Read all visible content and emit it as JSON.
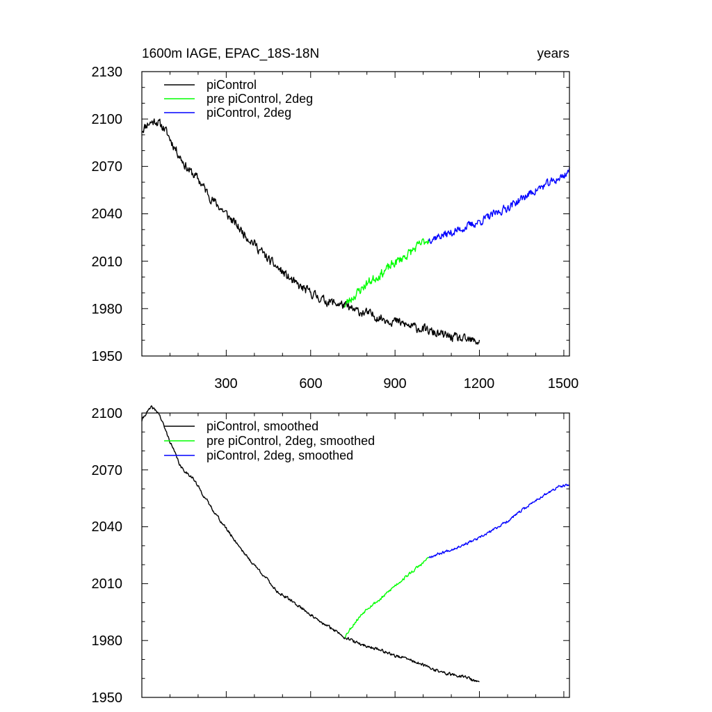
{
  "chart_data": [
    {
      "type": "line",
      "title_left": "1600m IAGE, EPAC_18S-18N",
      "title_right": "years",
      "xlabel": "",
      "ylabel": "",
      "xlim": [
        0,
        1520
      ],
      "ylim": [
        1950,
        2130
      ],
      "xticks": [
        300,
        600,
        900,
        1200,
        1500
      ],
      "xtick_labels": [
        "300",
        "600",
        "900",
        "1200",
        "1500"
      ],
      "yticks": [
        1950,
        1980,
        2010,
        2040,
        2070,
        2100,
        2130
      ],
      "ytick_labels": [
        "1950",
        "1980",
        "2010",
        "2040",
        "2070",
        "2100",
        "2130"
      ],
      "legend_position": "top-left",
      "series": [
        {
          "name": "piControl",
          "color": "#000000",
          "noise": 2.5,
          "seed": 11,
          "points": [
            [
              0,
              2093
            ],
            [
              20,
              2097
            ],
            [
              50,
              2099
            ],
            [
              80,
              2094
            ],
            [
              120,
              2081
            ],
            [
              160,
              2069
            ],
            [
              200,
              2062
            ],
            [
              250,
              2049
            ],
            [
              300,
              2040
            ],
            [
              350,
              2030
            ],
            [
              400,
              2021
            ],
            [
              450,
              2011
            ],
            [
              500,
              2003
            ],
            [
              550,
              1995
            ],
            [
              600,
              1990
            ],
            [
              650,
              1985
            ],
            [
              700,
              1983
            ],
            [
              720,
              1982
            ],
            [
              750,
              1979
            ],
            [
              800,
              1977
            ],
            [
              850,
              1974
            ],
            [
              900,
              1972
            ],
            [
              950,
              1969
            ],
            [
              1000,
              1967
            ],
            [
              1050,
              1964
            ],
            [
              1100,
              1962
            ],
            [
              1150,
              1960
            ],
            [
              1200,
              1959
            ]
          ]
        },
        {
          "name": "pre piControl, 2deg",
          "color": "#00ff00",
          "noise": 2.5,
          "seed": 23,
          "points": [
            [
              720,
              1982
            ],
            [
              760,
              1989
            ],
            [
              800,
              1996
            ],
            [
              850,
              2002
            ],
            [
              900,
              2009
            ],
            [
              950,
              2015
            ],
            [
              1000,
              2022
            ],
            [
              1020,
              2024
            ]
          ]
        },
        {
          "name": "piControl, 2deg",
          "color": "#0000ff",
          "noise": 2.2,
          "seed": 37,
          "points": [
            [
              1020,
              2024
            ],
            [
              1100,
              2028
            ],
            [
              1200,
              2035
            ],
            [
              1300,
              2044
            ],
            [
              1400,
              2055
            ],
            [
              1500,
              2064
            ],
            [
              1520,
              2068
            ]
          ]
        }
      ]
    },
    {
      "type": "line",
      "xlabel": "",
      "ylabel": "",
      "xlim": [
        0,
        1520
      ],
      "ylim": [
        1950,
        2100
      ],
      "xticks": [
        300,
        600,
        900,
        1200,
        1500
      ],
      "yticks": [
        1950,
        1980,
        2010,
        2040,
        2070,
        2100
      ],
      "ytick_labels": [
        "1950",
        "1980",
        "2010",
        "2040",
        "2070",
        "2100"
      ],
      "legend_position": "top-left",
      "series": [
        {
          "name": "piControl, smoothed",
          "color": "#000000",
          "noise": 0.7,
          "seed": 41,
          "points": [
            [
              0,
              2096
            ],
            [
              15,
              2100
            ],
            [
              35,
              2103
            ],
            [
              60,
              2100
            ],
            [
              100,
              2085
            ],
            [
              140,
              2071
            ],
            [
              180,
              2066
            ],
            [
              230,
              2054
            ],
            [
              280,
              2043
            ],
            [
              330,
              2033
            ],
            [
              380,
              2023
            ],
            [
              430,
              2015
            ],
            [
              480,
              2006
            ],
            [
              530,
              2001
            ],
            [
              580,
              1996
            ],
            [
              630,
              1990
            ],
            [
              680,
              1986
            ],
            [
              720,
              1982
            ],
            [
              760,
              1979
            ],
            [
              800,
              1977
            ],
            [
              850,
              1975
            ],
            [
              900,
              1972
            ],
            [
              950,
              1970
            ],
            [
              1000,
              1967
            ],
            [
              1050,
              1964
            ],
            [
              1100,
              1962
            ],
            [
              1150,
              1961
            ],
            [
              1190,
              1958
            ],
            [
              1200,
              1959
            ]
          ]
        },
        {
          "name": "pre piControl, 2deg, smoothed",
          "color": "#00ff00",
          "noise": 0.7,
          "seed": 53,
          "points": [
            [
              720,
              1982
            ],
            [
              760,
              1990
            ],
            [
              800,
              1997
            ],
            [
              850,
              2002
            ],
            [
              900,
              2009
            ],
            [
              950,
              2015
            ],
            [
              1000,
              2021
            ],
            [
              1020,
              2024
            ]
          ]
        },
        {
          "name": "piControl, 2deg, smoothed",
          "color": "#0000ff",
          "noise": 0.6,
          "seed": 67,
          "points": [
            [
              1020,
              2024
            ],
            [
              1100,
              2028
            ],
            [
              1200,
              2034
            ],
            [
              1300,
              2043
            ],
            [
              1400,
              2054
            ],
            [
              1480,
              2061
            ],
            [
              1520,
              2062
            ]
          ]
        }
      ]
    }
  ]
}
